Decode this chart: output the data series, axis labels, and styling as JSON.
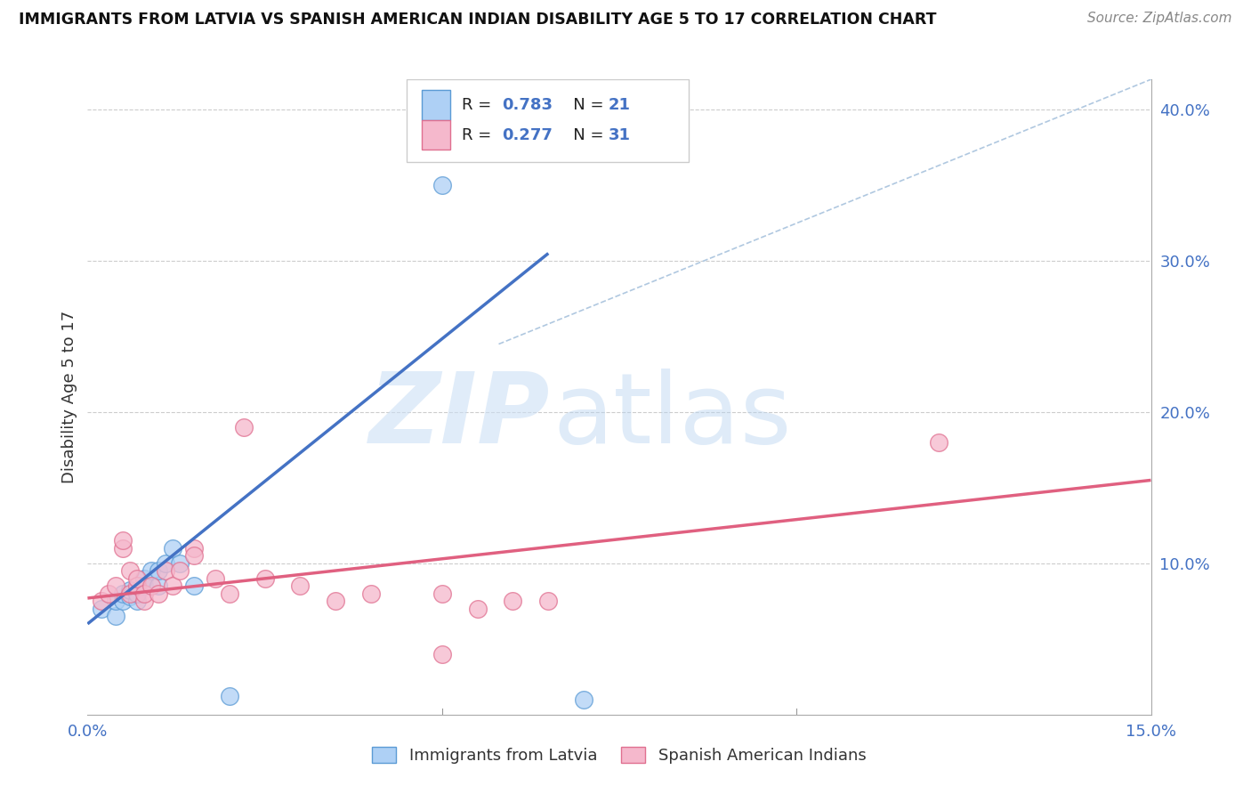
{
  "title": "IMMIGRANTS FROM LATVIA VS SPANISH AMERICAN INDIAN DISABILITY AGE 5 TO 17 CORRELATION CHART",
  "source": "Source: ZipAtlas.com",
  "ylabel": "Disability Age 5 to 17",
  "xlim": [
    0.0,
    0.15
  ],
  "ylim": [
    0.0,
    0.42
  ],
  "legend1_R": "0.783",
  "legend1_N": "21",
  "legend2_R": "0.277",
  "legend2_N": "31",
  "blue_fill": "#aed0f5",
  "blue_edge": "#5b9bd5",
  "pink_fill": "#f5b8cc",
  "pink_edge": "#e07090",
  "blue_line_color": "#4472c4",
  "pink_line_color": "#e06080",
  "diag_line_color": "#b0c8e0",
  "blue_scatter_x": [
    0.002,
    0.004,
    0.004,
    0.005,
    0.005,
    0.006,
    0.006,
    0.007,
    0.007,
    0.008,
    0.008,
    0.009,
    0.01,
    0.01,
    0.011,
    0.012,
    0.013,
    0.015,
    0.02,
    0.05,
    0.07
  ],
  "blue_scatter_y": [
    0.07,
    0.065,
    0.075,
    0.075,
    0.08,
    0.078,
    0.082,
    0.075,
    0.08,
    0.085,
    0.09,
    0.095,
    0.085,
    0.095,
    0.1,
    0.11,
    0.1,
    0.085,
    0.012,
    0.35,
    0.01
  ],
  "pink_scatter_x": [
    0.002,
    0.003,
    0.004,
    0.005,
    0.005,
    0.006,
    0.006,
    0.007,
    0.007,
    0.008,
    0.008,
    0.009,
    0.01,
    0.011,
    0.012,
    0.013,
    0.015,
    0.015,
    0.018,
    0.02,
    0.022,
    0.025,
    0.03,
    0.035,
    0.04,
    0.05,
    0.055,
    0.06,
    0.065,
    0.12,
    0.05
  ],
  "pink_scatter_y": [
    0.075,
    0.08,
    0.085,
    0.11,
    0.115,
    0.08,
    0.095,
    0.085,
    0.09,
    0.075,
    0.08,
    0.085,
    0.08,
    0.095,
    0.085,
    0.095,
    0.11,
    0.105,
    0.09,
    0.08,
    0.19,
    0.09,
    0.085,
    0.075,
    0.08,
    0.08,
    0.07,
    0.075,
    0.075,
    0.18,
    0.04
  ],
  "blue_line_x": [
    0.0,
    0.065
  ],
  "blue_line_y": [
    0.06,
    0.305
  ],
  "pink_line_x": [
    0.0,
    0.15
  ],
  "pink_line_y": [
    0.077,
    0.155
  ],
  "diag_line_x": [
    0.058,
    0.15
  ],
  "diag_line_y": [
    0.245,
    0.42
  ]
}
